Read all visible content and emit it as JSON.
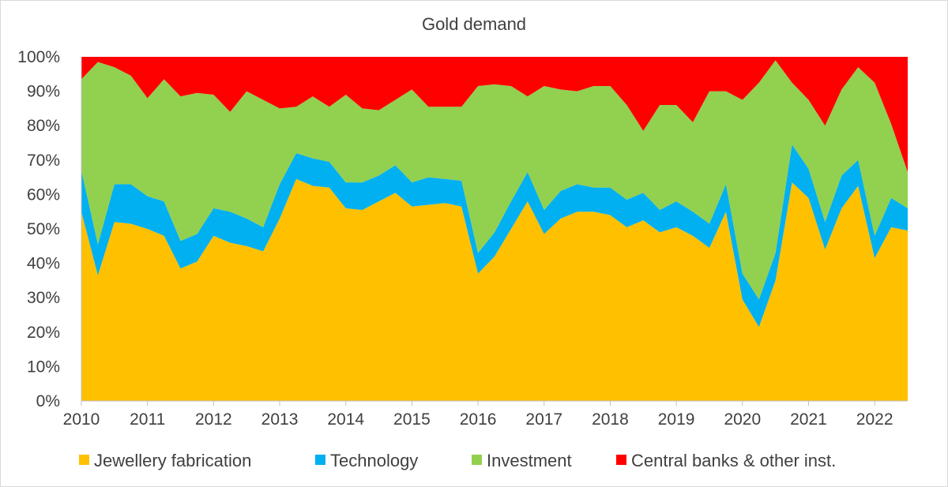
{
  "chart_data": {
    "type": "area",
    "stacked": true,
    "normalized": true,
    "title": "Gold demand",
    "xlabel": "",
    "ylabel": "",
    "ylim": [
      0,
      100
    ],
    "y_ticks": [
      "0%",
      "10%",
      "20%",
      "30%",
      "40%",
      "50%",
      "60%",
      "70%",
      "80%",
      "90%",
      "100%"
    ],
    "x_ticks": [
      "2010",
      "2011",
      "2012",
      "2013",
      "2014",
      "2015",
      "2016",
      "2017",
      "2018",
      "2019",
      "2020",
      "2021",
      "2022"
    ],
    "x_range": [
      2010.0,
      2022.5
    ],
    "legend_position": "bottom",
    "grid": false,
    "x": [
      2010.0,
      2010.25,
      2010.5,
      2010.75,
      2011.0,
      2011.25,
      2011.5,
      2011.75,
      2012.0,
      2012.25,
      2012.5,
      2012.75,
      2013.0,
      2013.25,
      2013.5,
      2013.75,
      2014.0,
      2014.25,
      2014.5,
      2014.75,
      2015.0,
      2015.25,
      2015.5,
      2015.75,
      2016.0,
      2016.25,
      2016.5,
      2016.75,
      2017.0,
      2017.25,
      2017.5,
      2017.75,
      2018.0,
      2018.25,
      2018.5,
      2018.75,
      2019.0,
      2019.25,
      2019.5,
      2019.75,
      2020.0,
      2020.25,
      2020.5,
      2020.75,
      2021.0,
      2021.25,
      2021.5,
      2021.75,
      2022.0,
      2022.25,
      2022.5
    ],
    "series": [
      {
        "name": "Jewellery fabrication",
        "color": "#FFC000",
        "values": [
          55,
          36.5,
          52,
          51.5,
          50,
          48,
          38.5,
          40.5,
          48,
          46,
          45,
          43.5,
          53,
          64.5,
          62.5,
          62,
          56,
          55.5,
          58,
          60.5,
          56.5,
          57,
          57.5,
          56.5,
          37,
          42,
          50,
          58,
          48.5,
          53,
          55,
          55,
          54,
          50.5,
          52.5,
          49,
          50.5,
          48,
          44.5,
          55,
          29.5,
          21.5,
          35,
          63.5,
          59,
          44,
          56,
          62.5,
          41.5,
          50.5,
          49.5
        ]
      },
      {
        "name": "Technology",
        "color": "#00B0F0",
        "values": [
          12,
          9,
          11,
          11.5,
          9.5,
          10,
          8,
          8,
          8,
          9,
          8,
          7,
          10,
          7.5,
          8,
          7.5,
          7.5,
          8,
          7.5,
          8,
          7,
          8,
          7,
          7.5,
          6,
          7,
          8,
          8.5,
          7,
          8,
          8,
          7,
          8,
          8,
          8,
          6.5,
          7.5,
          7,
          7,
          8,
          7.5,
          8,
          8,
          11,
          8.5,
          8,
          9.5,
          7.5,
          6.5,
          8.5,
          6.5
        ]
      },
      {
        "name": "Investment",
        "color": "#92D050",
        "values": [
          26.5,
          53,
          34,
          31.5,
          28.5,
          35.5,
          42,
          41,
          33,
          29,
          37,
          37,
          22,
          13.5,
          18,
          16,
          25.5,
          21.5,
          19,
          19,
          27,
          20.5,
          21,
          21.5,
          48.5,
          43,
          33.5,
          22,
          36,
          29.5,
          27,
          29.5,
          29.5,
          27.5,
          18,
          30.5,
          28,
          26,
          38.5,
          27,
          50.5,
          63,
          56,
          18,
          20,
          28,
          25,
          27,
          44.5,
          21.5,
          10.5
        ]
      },
      {
        "name": "Central banks & other inst.",
        "color": "#FF0000",
        "values": [
          6.5,
          1.5,
          3,
          5.5,
          12,
          6.5,
          11.5,
          10.5,
          11,
          16,
          10,
          12.5,
          15,
          14.5,
          11.5,
          14.5,
          11,
          15,
          15.5,
          12.5,
          9.5,
          14.5,
          14.5,
          14.5,
          8.5,
          8,
          8.5,
          11.5,
          8.5,
          9.5,
          10,
          8.5,
          8.5,
          14,
          21.5,
          14,
          14,
          19,
          10,
          10,
          12.5,
          7.5,
          1,
          7.5,
          12.5,
          20,
          9.5,
          3,
          7.5,
          19.5,
          33.5
        ]
      }
    ]
  }
}
